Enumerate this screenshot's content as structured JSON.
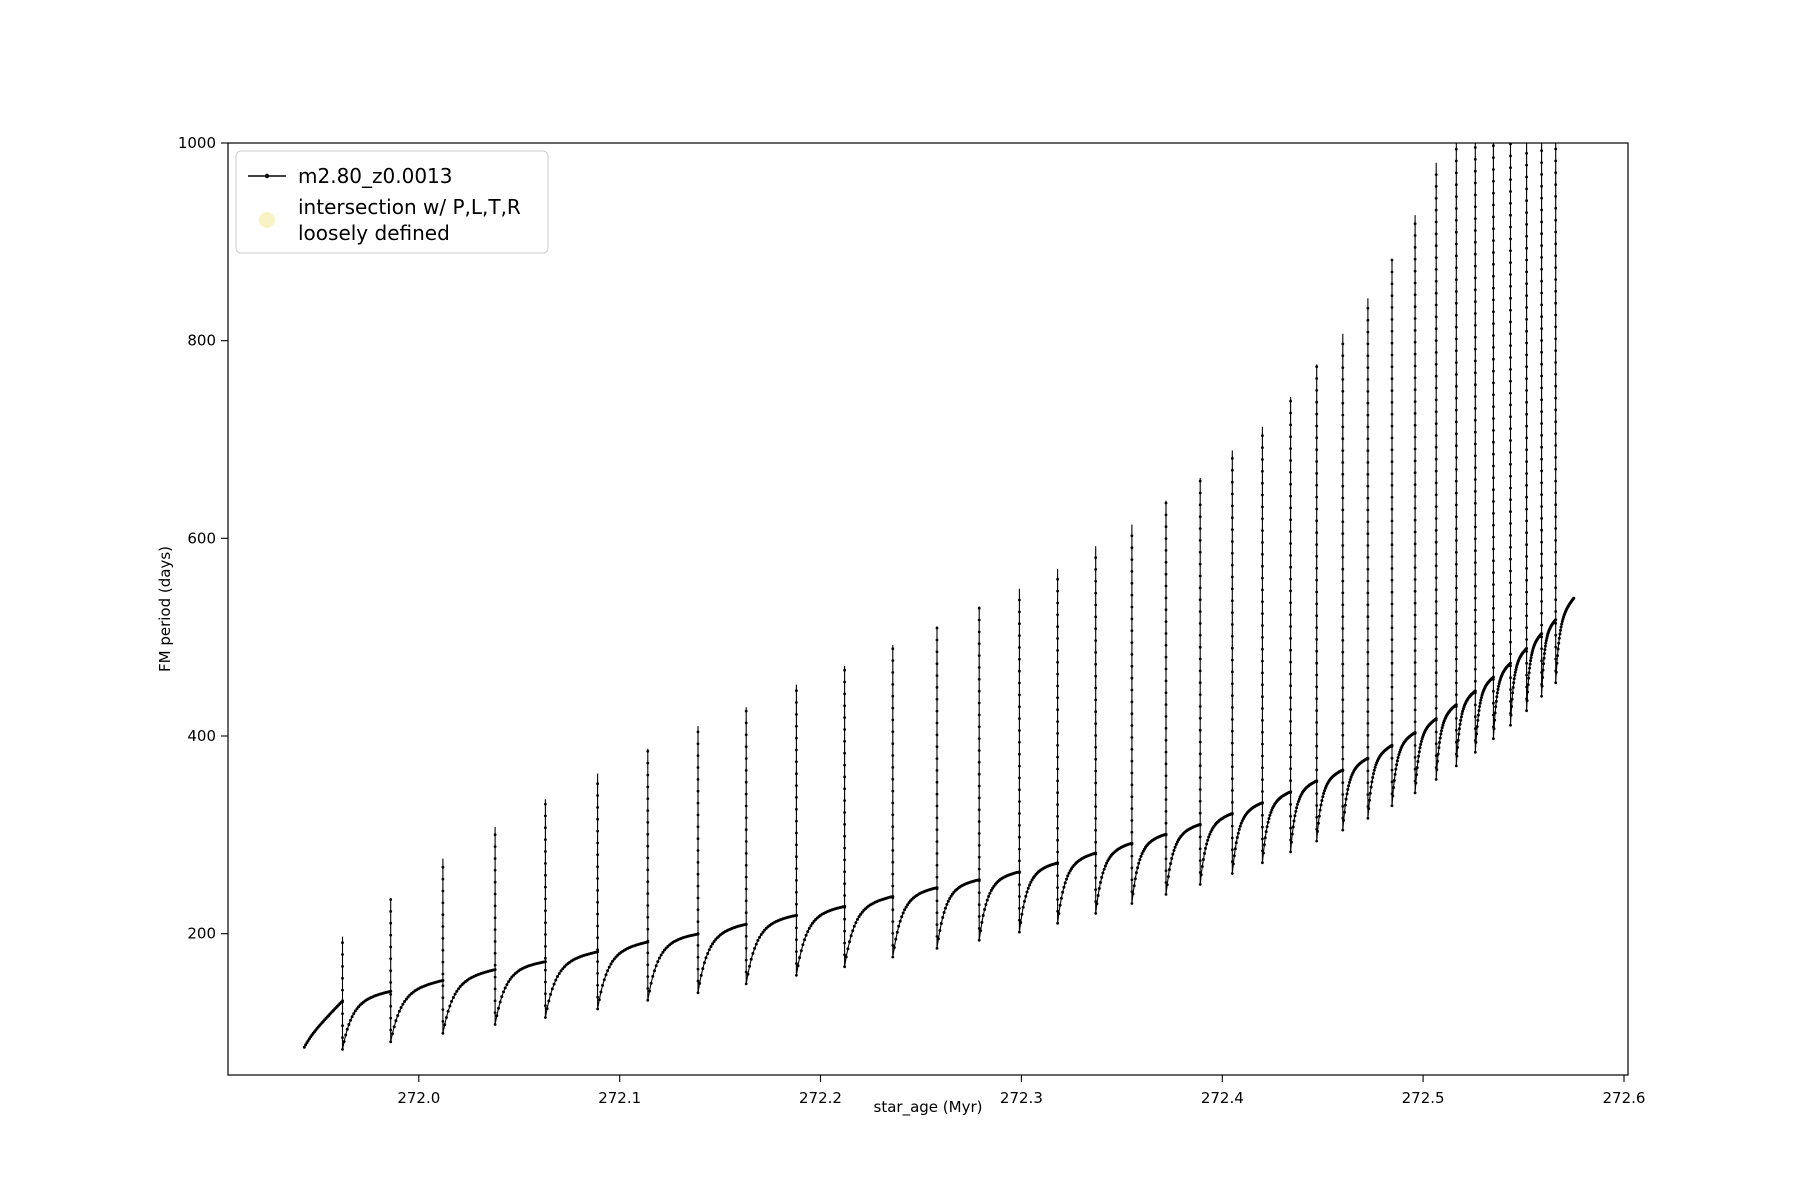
{
  "figure": {
    "background": "#ffffff"
  },
  "chart_data": {
    "type": "line",
    "title": "",
    "xlabel": "star_age (Myr)",
    "ylabel": "FM period (days)",
    "xlim": [
      271.905,
      272.602
    ],
    "ylim": [
      57,
      1000
    ],
    "grid": false,
    "legend_position": "upper-left",
    "x_ticks": [
      {
        "v": 272.0,
        "label": "272.0"
      },
      {
        "v": 272.1,
        "label": "272.1"
      },
      {
        "v": 272.2,
        "label": "272.2"
      },
      {
        "v": 272.3,
        "label": "272.3"
      },
      {
        "v": 272.4,
        "label": "272.4"
      },
      {
        "v": 272.5,
        "label": "272.5"
      },
      {
        "v": 272.6,
        "label": "272.6"
      }
    ],
    "y_ticks": [
      {
        "v": 200,
        "label": "200"
      },
      {
        "v": 400,
        "label": "400"
      },
      {
        "v": 600,
        "label": "600"
      },
      {
        "v": 800,
        "label": "800"
      },
      {
        "v": 1000,
        "label": "1000"
      }
    ],
    "legend": {
      "series_label": "m2.80_z0.0013",
      "intersection_label_line1": "intersection w/ P,L,T,R",
      "intersection_label_line2": "loosely defined"
    },
    "colors": {
      "line": "#000000",
      "intersection_marker": "#f8f2c4"
    },
    "series": [
      {
        "name": "m2.80_z0.0013",
        "description": "Scalloped rising curve with periodic vertical spikes (peaks) followed by sharp dips; spikes above 1000 are clipped by the axes.",
        "model": {
          "start_x": 271.943,
          "start_dip": 85,
          "end_x": 272.575,
          "dip_ratio_start": 0.62,
          "dip_ratio_end": 0.88,
          "baseline": [
            [
              271.943,
              92
            ],
            [
              271.962,
              132
            ],
            [
              271.986,
              142
            ],
            [
              272.012,
              153
            ],
            [
              272.038,
              164
            ],
            [
              272.063,
              172
            ],
            [
              272.089,
              182
            ],
            [
              272.114,
              192
            ],
            [
              272.139,
              200
            ],
            [
              272.163,
              210
            ],
            [
              272.188,
              219
            ],
            [
              272.212,
              228
            ],
            [
              272.236,
              238
            ],
            [
              272.258,
              247
            ],
            [
              272.279,
              255
            ],
            [
              272.299,
              263
            ],
            [
              272.318,
              272
            ],
            [
              272.337,
              282
            ],
            [
              272.355,
              292
            ],
            [
              272.372,
              301
            ],
            [
              272.389,
              311
            ],
            [
              272.405,
              322
            ],
            [
              272.42,
              333
            ],
            [
              272.434,
              344
            ],
            [
              272.447,
              355
            ],
            [
              272.46,
              366
            ],
            [
              272.4725,
              378
            ],
            [
              272.4845,
              391
            ],
            [
              272.496,
              404
            ],
            [
              272.5065,
              418
            ],
            [
              272.5165,
              432
            ],
            [
              272.526,
              446
            ],
            [
              272.535,
              460
            ],
            [
              272.5435,
              474
            ],
            [
              272.5515,
              489
            ],
            [
              272.559,
              504
            ],
            [
              272.566,
              518
            ],
            [
              272.575,
              540
            ]
          ],
          "spikes": [
            [
              271.962,
              197
            ],
            [
              271.986,
              236
            ],
            [
              272.012,
              276
            ],
            [
              272.038,
              308
            ],
            [
              272.063,
              336
            ],
            [
              272.089,
              362
            ],
            [
              272.114,
              387
            ],
            [
              272.139,
              410
            ],
            [
              272.163,
              429
            ],
            [
              272.188,
              452
            ],
            [
              272.212,
              471
            ],
            [
              272.236,
              492
            ],
            [
              272.258,
              511
            ],
            [
              272.279,
              531
            ],
            [
              272.299,
              549
            ],
            [
              272.318,
              569
            ],
            [
              272.337,
              592
            ],
            [
              272.355,
              614
            ],
            [
              272.372,
              638
            ],
            [
              272.389,
              661
            ],
            [
              272.405,
              689
            ],
            [
              272.42,
              713
            ],
            [
              272.434,
              743
            ],
            [
              272.447,
              776
            ],
            [
              272.46,
              807
            ],
            [
              272.4725,
              843
            ],
            [
              272.4845,
              883
            ],
            [
              272.496,
              927
            ],
            [
              272.5065,
              980
            ],
            [
              272.5165,
              1015
            ],
            [
              272.526,
              1045
            ],
            [
              272.535,
              1075
            ],
            [
              272.5435,
              1105
            ],
            [
              272.5515,
              1135
            ],
            [
              272.559,
              1160
            ],
            [
              272.566,
              1185
            ]
          ]
        }
      }
    ]
  }
}
